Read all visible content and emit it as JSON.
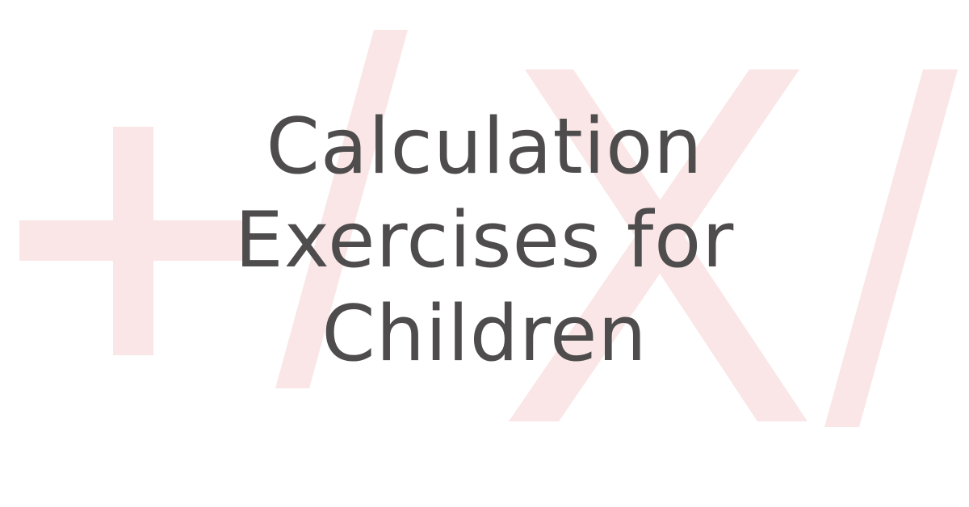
{
  "title": {
    "lines": [
      "Calculation",
      "Exercises for",
      "Children"
    ]
  },
  "background": {
    "symbols": [
      "plus-icon",
      "slash-icon",
      "times-icon",
      "slash-icon"
    ],
    "symbol_color": "#fae6e6"
  },
  "colors": {
    "title_text": "#4e4c4c",
    "page_background": "#ffffff"
  }
}
